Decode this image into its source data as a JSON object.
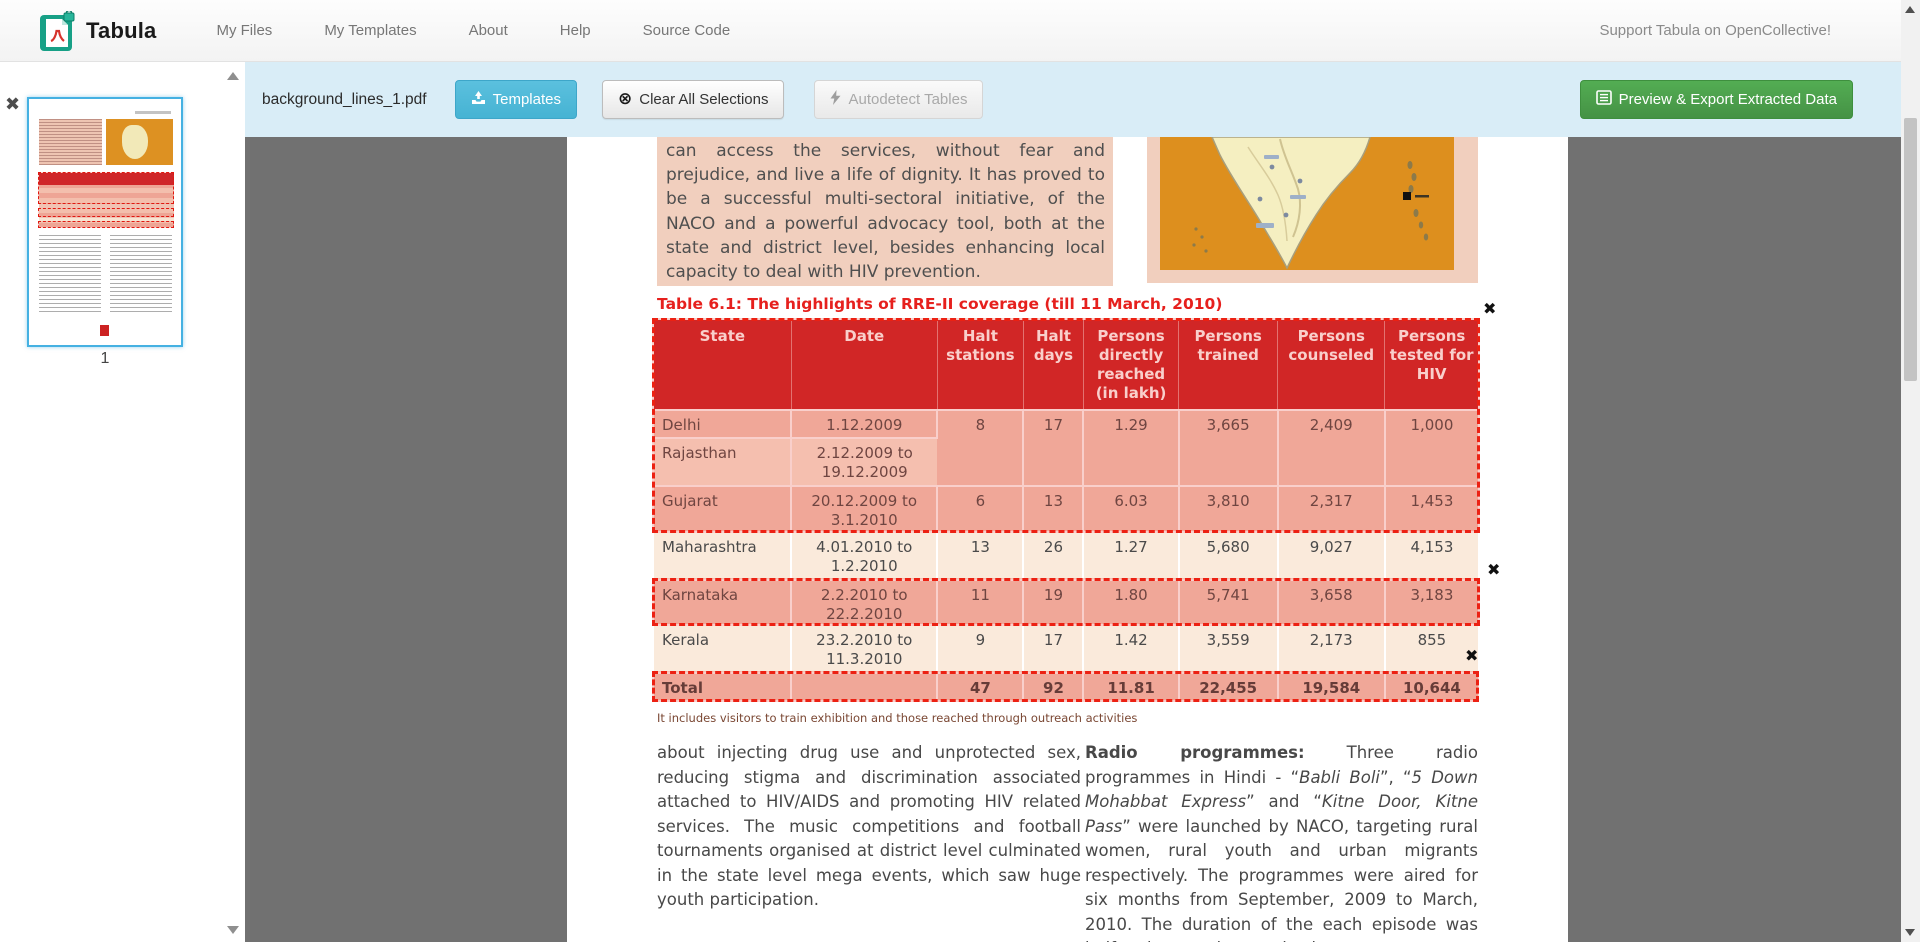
{
  "navbar": {
    "brand": "Tabula",
    "items": [
      {
        "label": "My Files"
      },
      {
        "label": "My Templates"
      },
      {
        "label": "About"
      },
      {
        "label": "Help"
      },
      {
        "label": "Source Code"
      }
    ],
    "support_link": "Support Tabula on OpenCollective!"
  },
  "toolbar": {
    "filename": "background_lines_1.pdf",
    "templates_label": "Templates",
    "clear_label": "Clear All Selections",
    "clear_glyph": "⊗",
    "autodetect_label": "Autodetect Tables",
    "export_label": "Preview & Export Extracted Data"
  },
  "sidebar": {
    "page_number": "1",
    "close_glyph": "✖"
  },
  "selections": {
    "close_glyph": "✖"
  },
  "document": {
    "intro_paragraph": "can access the services, without fear and prejudice, and live a life of dignity. It has proved to be a successful multi-sectoral initiative, of the NACO and a powerful advocacy tool, both at the state and district level, besides enhancing local capacity to deal with HIV prevention.",
    "table_title": "Table 6.1: The highlights of RRE-II coverage (till 11 March, 2010)",
    "table": {
      "headers": [
        "State",
        "Date",
        "Halt stations",
        "Halt days",
        "Persons directly reached (in lakh)",
        "Persons trained",
        "Persons counseled",
        "Persons tested for HIV"
      ],
      "rows": [
        {
          "state": "Delhi",
          "date": "1.12.2009",
          "halt_stations": "8",
          "halt_days": "17",
          "reached": "1.29",
          "trained": "3,665",
          "counseled": "2,409",
          "tested": "1,000"
        },
        {
          "state": "Rajasthan",
          "date": "2.12.2009 to 19.12.2009",
          "halt_stations": "",
          "halt_days": "",
          "reached": "",
          "trained": "",
          "counseled": "",
          "tested": ""
        },
        {
          "state": "Gujarat",
          "date": "20.12.2009 to 3.1.2010",
          "halt_stations": "6",
          "halt_days": "13",
          "reached": "6.03",
          "trained": "3,810",
          "counseled": "2,317",
          "tested": "1,453"
        },
        {
          "state": "Maharashtra",
          "date": "4.01.2010 to 1.2.2010",
          "halt_stations": "13",
          "halt_days": "26",
          "reached": "1.27",
          "trained": "5,680",
          "counseled": "9,027",
          "tested": "4,153"
        },
        {
          "state": "Karnataka",
          "date": "2.2.2010 to 22.2.2010",
          "halt_stations": "11",
          "halt_days": "19",
          "reached": "1.80",
          "trained": "5,741",
          "counseled": "3,658",
          "tested": "3,183"
        },
        {
          "state": "Kerala",
          "date": "23.2.2010 to 11.3.2010",
          "halt_stations": "9",
          "halt_days": "17",
          "reached": "1.42",
          "trained": "3,559",
          "counseled": "2,173",
          "tested": "855"
        },
        {
          "state": "Total",
          "date": "",
          "halt_stations": "47",
          "halt_days": "92",
          "reached": "11.81",
          "trained": "22,455",
          "counseled": "19,584",
          "tested": "10,644"
        }
      ],
      "footnote": "It includes visitors to train exhibition and those reached through outreach activities"
    },
    "left_column": "about injecting drug use and unprotected sex, reducing stigma and discrimination associated attached to HIV/AIDS and promoting HIV related services. The music competitions and football tournaments organised at district level culminated in the state level mega events, which saw huge youth participation.",
    "right_column_segments": [
      {
        "t": "Radio programmes:",
        "b": true
      },
      {
        "t": " Three radio programmes in Hindi - “"
      },
      {
        "t": "Babli Boli",
        "i": true
      },
      {
        "t": "”, “"
      },
      {
        "t": "5 Down Mohabbat Express",
        "i": true
      },
      {
        "t": "” and “"
      },
      {
        "t": "Kitne Door, Kitne Pass",
        "i": true
      },
      {
        "t": "” were launched by NACO, targeting rural women, rural youth and urban migrants respectively. The programmes were aired for six months from September, 2009 to March, 2010. The duration of the each episode was half an hour and two episodes"
      }
    ]
  },
  "colors": {
    "toolbar_bg": "#d9edf7",
    "templates_button": "#5bc0de",
    "export_button": "#459245",
    "table_header_red": "#cb2127",
    "selection_red": "#ec2113",
    "row_pink": "#f4cbbc",
    "row_cream": "#faeadb",
    "content_bg": "#717171",
    "brand_teal": "#17a086"
  }
}
